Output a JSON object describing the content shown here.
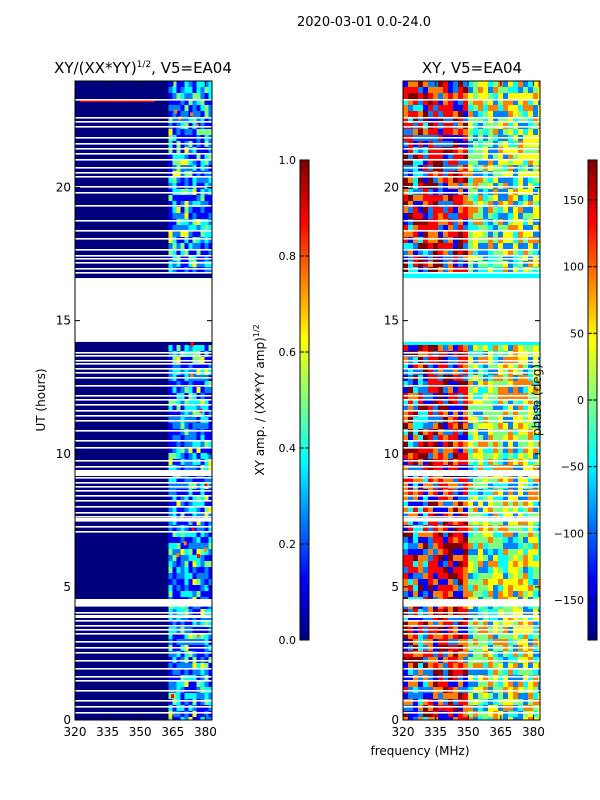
{
  "suptitle": "2020-03-01 0.0-24.0",
  "colorscale": [
    "#00007f",
    "#0000ff",
    "#007fff",
    "#00ffff",
    "#7fff7f",
    "#ffff00",
    "#ff7f00",
    "#ff0000",
    "#7f0000"
  ],
  "chart_data": [
    {
      "type": "heatmap",
      "title_main": "XY/(XX*YY)",
      "title_exp": "1/2",
      "title_suffix": ", V5=EA04",
      "xlim": [
        320,
        383
      ],
      "ylim": [
        0,
        24
      ],
      "xticks": [
        320,
        335,
        350,
        365,
        380
      ],
      "yticks": [
        0,
        5,
        10,
        15,
        20
      ],
      "ylabel": "UT (hours)",
      "gaps_hours": [
        [
          14.2,
          16.6
        ]
      ],
      "hot_band_mhz": [
        363,
        382
      ],
      "colorbar": {
        "label_main": "XY amp. / (XX*YY amp)",
        "label_exp": "1/2",
        "range": [
          0.0,
          1.0
        ],
        "ticks": [
          "0.0",
          "0.2",
          "0.4",
          "0.6",
          "0.8",
          "1.0"
        ],
        "tick_values": [
          0.0,
          0.2,
          0.4,
          0.6,
          0.8,
          1.0
        ]
      }
    },
    {
      "type": "heatmap",
      "title": "XY, V5=EA04",
      "xlim": [
        320,
        383
      ],
      "ylim": [
        0,
        24
      ],
      "xticks": [
        320,
        335,
        350,
        365,
        380
      ],
      "yticks": [
        0,
        5,
        10,
        15,
        20
      ],
      "xlabel": "frequency (MHz)",
      "gaps_hours": [
        [
          14.2,
          16.6
        ]
      ],
      "colorbar": {
        "label": "phase (deg)",
        "range": [
          -180,
          180
        ],
        "ticks": [
          "150",
          "100",
          "50",
          "0",
          "−50",
          "−100",
          "−150"
        ],
        "tick_values": [
          150,
          100,
          50,
          0,
          -50,
          -100,
          -150
        ]
      }
    }
  ]
}
